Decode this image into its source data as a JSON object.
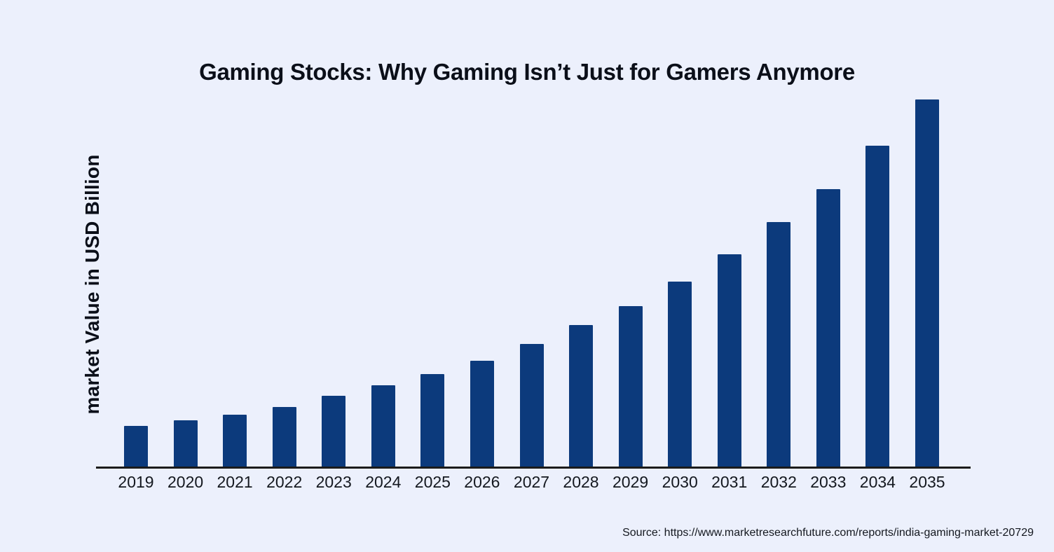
{
  "page": {
    "background_color": "#ECF0FC"
  },
  "chart_data": {
    "type": "bar",
    "title": "Gaming Stocks: Why Gaming Isn’t Just for Gamers Anymore",
    "ylabel": "market Value in USD Billion",
    "xlabel": "",
    "categories": [
      "2019",
      "2020",
      "2021",
      "2022",
      "2023",
      "2024",
      "2025",
      "2026",
      "2027",
      "2028",
      "2029",
      "2030",
      "2031",
      "2032",
      "2033",
      "2034",
      "2035"
    ],
    "values": [
      1.5,
      1.7,
      1.9,
      2.2,
      2.6,
      3.0,
      3.4,
      3.9,
      4.5,
      5.2,
      5.9,
      6.8,
      7.8,
      9.0,
      10.2,
      11.8,
      13.5
    ],
    "unit": "USD Billion",
    "ylim": [
      0,
      13.5
    ],
    "y_axis_ticks_shown": false,
    "value_labels_shown": false,
    "grid": false,
    "legend_position": "none",
    "bar_color": "#0C3A7C",
    "axis_color": "#1B1B1B",
    "text_color": "#0B0F19",
    "source": "Source: https://www.marketresearchfuture.com/reports/india-gaming-market-20729"
  }
}
